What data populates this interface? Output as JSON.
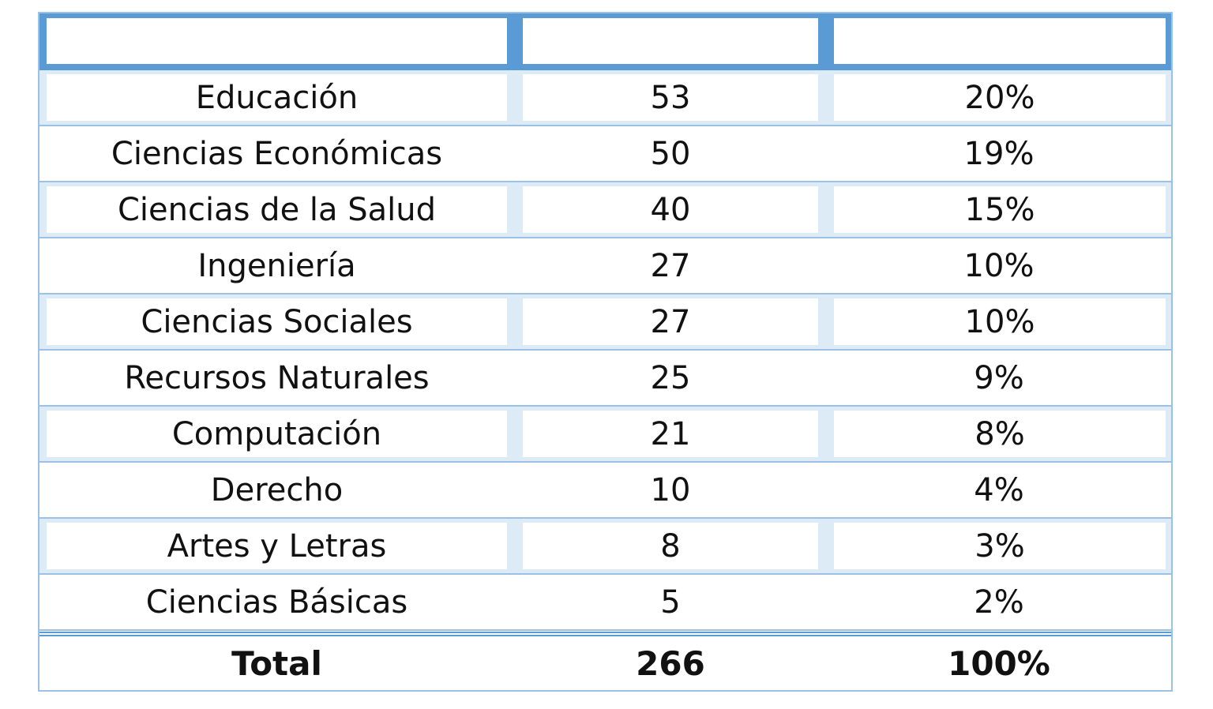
{
  "table": {
    "headers": [
      "",
      "",
      ""
    ],
    "rows": [
      {
        "area": "Educación",
        "count": "53",
        "percent": "20%"
      },
      {
        "area": "Ciencias Económicas",
        "count": "50",
        "percent": "19%"
      },
      {
        "area": "Ciencias de la Salud",
        "count": "40",
        "percent": "15%"
      },
      {
        "area": "Ingeniería",
        "count": "27",
        "percent": "10%"
      },
      {
        "area": "Ciencias Sociales",
        "count": "27",
        "percent": "10%"
      },
      {
        "area": "Recursos Naturales",
        "count": "25",
        "percent": "9%"
      },
      {
        "area": "Computación",
        "count": "21",
        "percent": "8%"
      },
      {
        "area": "Derecho",
        "count": "10",
        "percent": "4%"
      },
      {
        "area": "Artes y Letras",
        "count": "8",
        "percent": "3%"
      },
      {
        "area": "Ciencias Básicas",
        "count": "5",
        "percent": "2%"
      }
    ],
    "total": {
      "label": "Total",
      "count": "266",
      "percent": "100%"
    }
  },
  "colors": {
    "header_fill": "#5b9bd5",
    "band_fill": "#ddebf7",
    "border": "#9bc2e6"
  }
}
